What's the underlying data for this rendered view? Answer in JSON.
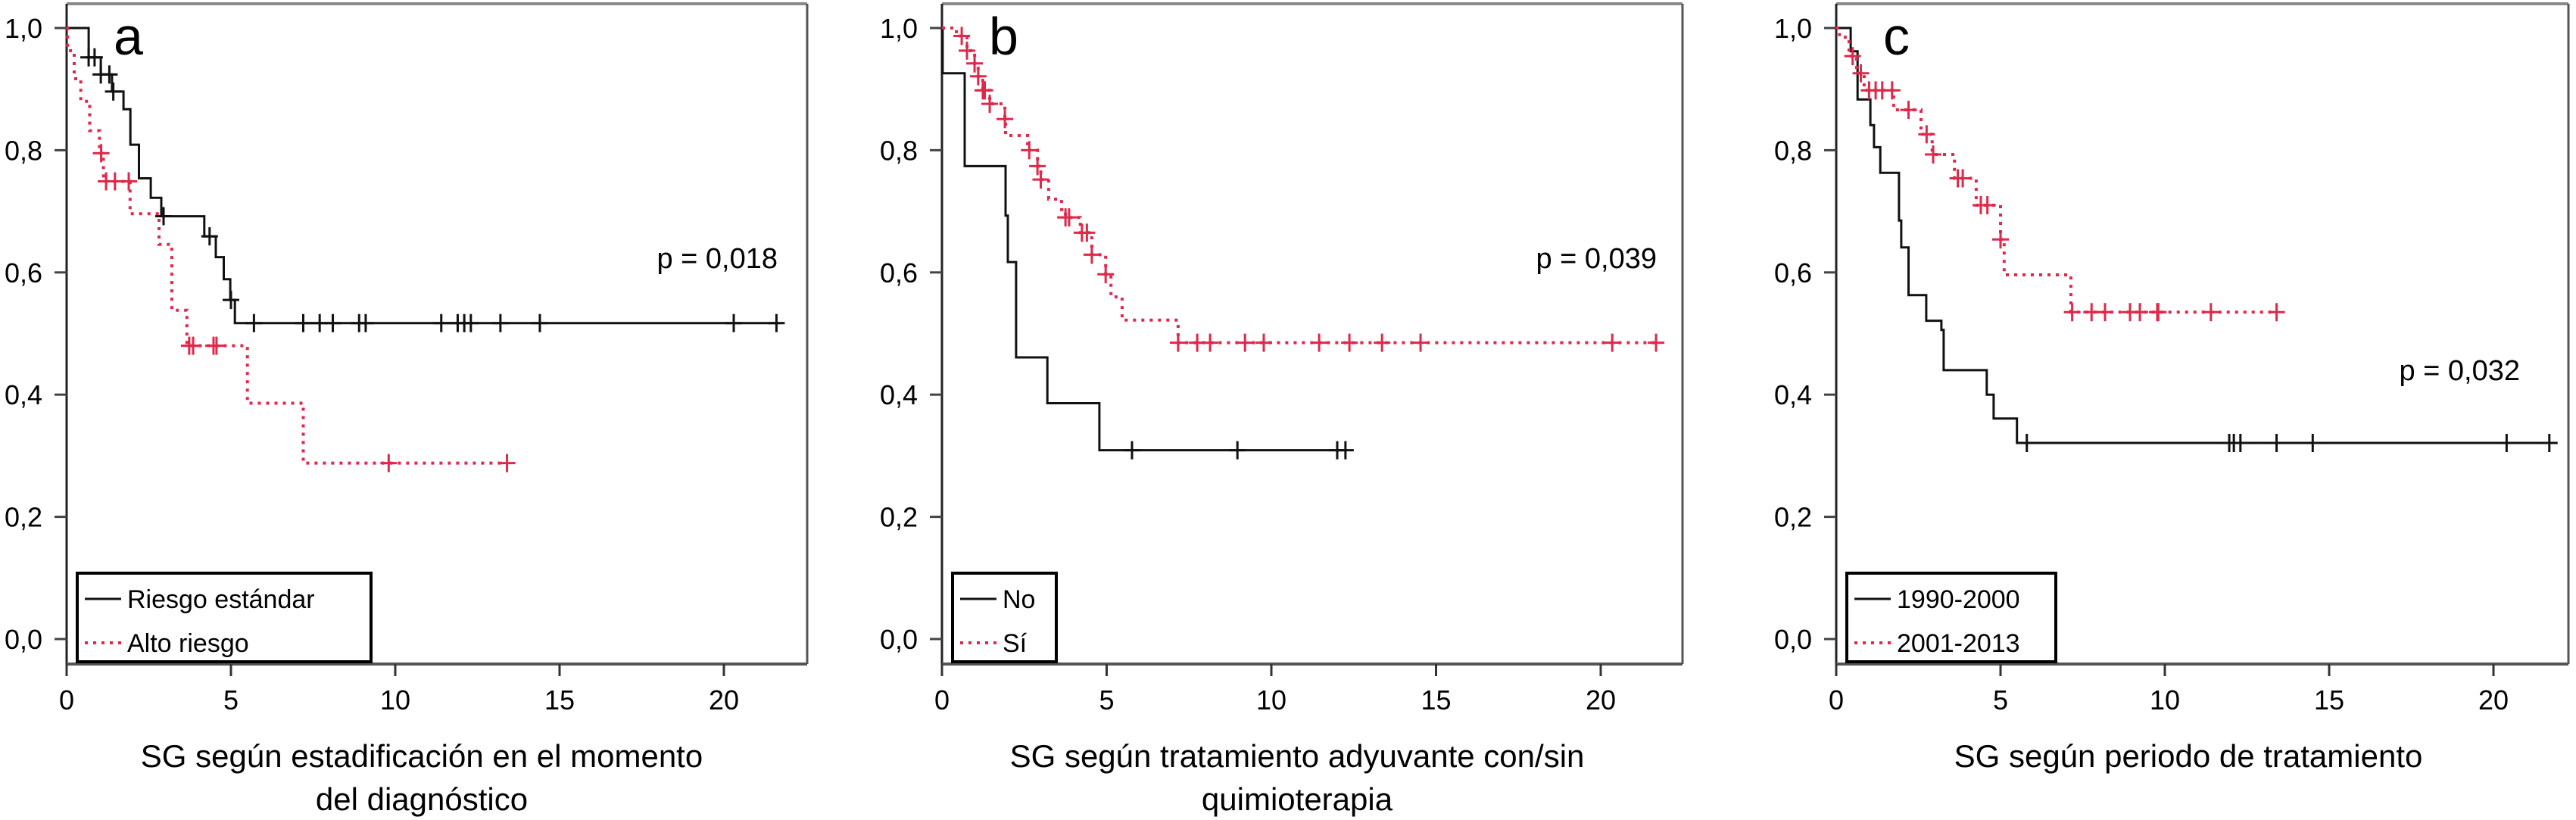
{
  "chart_data": [
    {
      "type": "line",
      "panel_letter": "a",
      "caption_lines": [
        "SG según estadificación en el momento",
        "del diagnóstico"
      ],
      "p_value": "p = 0,018",
      "xlabel": "",
      "ylabel": "",
      "xlim": [
        0,
        22.5
      ],
      "ylim": [
        0,
        1
      ],
      "xticks": [
        0,
        5,
        10,
        15,
        20
      ],
      "xtick_labels": [
        "0",
        "5",
        "10",
        "15",
        "20"
      ],
      "yticks": [
        0,
        0.2,
        0.4,
        0.6,
        0.8,
        1.0
      ],
      "ytick_labels": [
        "0,0",
        "0,2",
        "0,4",
        "0,6",
        "0,8",
        "1,0"
      ],
      "grid": false,
      "legend_placement": "bottom-left",
      "series": [
        {
          "name": "Riesgo estándar",
          "color": "#111111",
          "style": "solid",
          "end": 21.7,
          "steps": [
            [
              0.67,
              0.952
            ],
            [
              1.04,
              0.924
            ],
            [
              1.38,
              0.896
            ],
            [
              1.73,
              0.867
            ],
            [
              1.94,
              0.809
            ],
            [
              2.2,
              0.754
            ],
            [
              2.56,
              0.722
            ],
            [
              2.88,
              0.692
            ],
            [
              4.19,
              0.659
            ],
            [
              4.54,
              0.625
            ],
            [
              4.78,
              0.589
            ],
            [
              4.98,
              0.555
            ],
            [
              5.12,
              0.517
            ]
          ],
          "censored": [
            0.67,
            0.85,
            1.04,
            1.3,
            1.42,
            2.95,
            4.35,
            5.0,
            5.7,
            7.2,
            7.7,
            8.1,
            8.9,
            9.1,
            11.4,
            11.9,
            12.1,
            12.3,
            13.2,
            14.4,
            20.3,
            21.6
          ]
        },
        {
          "name": "Alto riesgo",
          "color": "#e0284a",
          "style": "dotted",
          "end": 13.4,
          "steps": [
            [
              0.03,
              0.963
            ],
            [
              0.23,
              0.917
            ],
            [
              0.43,
              0.88
            ],
            [
              0.7,
              0.832
            ],
            [
              1.0,
              0.795
            ],
            [
              1.12,
              0.749
            ],
            [
              1.93,
              0.696
            ],
            [
              2.81,
              0.646
            ],
            [
              3.2,
              0.538
            ],
            [
              3.66,
              0.48
            ],
            [
              5.5,
              0.386
            ],
            [
              7.2,
              0.288
            ]
          ],
          "censored": [
            1.05,
            1.2,
            1.47,
            1.89,
            3.73,
            3.85,
            4.47,
            4.56,
            9.8,
            13.4
          ]
        }
      ]
    },
    {
      "type": "line",
      "panel_letter": "b",
      "caption_lines": [
        "SG según tratamiento adyuvante con/sin",
        "quimioterapia"
      ],
      "p_value": "p = 0,039",
      "xlabel": "",
      "ylabel": "",
      "xlim": [
        0,
        22.5
      ],
      "ylim": [
        0,
        1
      ],
      "xticks": [
        0,
        5,
        10,
        15,
        20
      ],
      "xtick_labels": [
        "0",
        "5",
        "10",
        "15",
        "20"
      ],
      "yticks": [
        0,
        0.2,
        0.4,
        0.6,
        0.8,
        1.0
      ],
      "ytick_labels": [
        "0,0",
        "0,2",
        "0,4",
        "0,6",
        "0,8",
        "1,0"
      ],
      "grid": false,
      "legend_placement": "bottom-left",
      "series": [
        {
          "name": "No",
          "color": "#111111",
          "style": "solid",
          "end": 12.3,
          "steps": [
            [
              0.02,
              0.926
            ],
            [
              0.69,
              0.774
            ],
            [
              1.93,
              0.693
            ],
            [
              2.0,
              0.617
            ],
            [
              2.25,
              0.461
            ],
            [
              3.2,
              0.386
            ],
            [
              4.78,
              0.309
            ]
          ],
          "censored": [
            5.77,
            8.97,
            12.0,
            12.25
          ]
        },
        {
          "name": "Sí",
          "color": "#e0284a",
          "style": "dotted",
          "end": 21.7,
          "steps": [
            [
              0.44,
              0.987
            ],
            [
              0.76,
              0.963
            ],
            [
              0.99,
              0.942
            ],
            [
              1.1,
              0.921
            ],
            [
              1.24,
              0.898
            ],
            [
              1.45,
              0.876
            ],
            [
              1.91,
              0.851
            ],
            [
              1.93,
              0.824
            ],
            [
              2.6,
              0.8
            ],
            [
              2.9,
              0.774
            ],
            [
              3.0,
              0.752
            ],
            [
              3.24,
              0.72
            ],
            [
              3.63,
              0.703
            ],
            [
              3.75,
              0.69
            ],
            [
              4.2,
              0.665
            ],
            [
              4.55,
              0.629
            ],
            [
              4.97,
              0.597
            ],
            [
              5.13,
              0.56
            ],
            [
              5.47,
              0.522
            ],
            [
              7.17,
              0.485
            ]
          ],
          "censored": [
            0.6,
            0.76,
            0.99,
            1.1,
            1.24,
            1.3,
            1.45,
            1.91,
            2.65,
            2.9,
            3.0,
            3.75,
            3.86,
            4.25,
            4.4,
            4.55,
            4.97,
            7.17,
            7.75,
            8.14,
            9.2,
            9.77,
            11.45,
            12.37,
            13.36,
            14.53,
            20.35,
            21.68
          ]
        }
      ]
    },
    {
      "type": "line",
      "panel_letter": "c",
      "caption_lines": [
        "SG según periodo de tratamiento"
      ],
      "p_value": "p = 0,032",
      "xlabel": "",
      "ylabel": "",
      "xlim": [
        0,
        22.5
      ],
      "ylim": [
        0,
        1
      ],
      "xticks": [
        0,
        5,
        10,
        15,
        20
      ],
      "xtick_labels": [
        "0",
        "5",
        "10",
        "15",
        "20"
      ],
      "yticks": [
        0,
        0.2,
        0.4,
        0.6,
        0.8,
        1.0
      ],
      "ytick_labels": [
        "0,0",
        "0,2",
        "0,4",
        "0,6",
        "0,8",
        "1,0"
      ],
      "grid": false,
      "legend_placement": "bottom-left",
      "series": [
        {
          "name": "1990-2000",
          "color": "#111111",
          "style": "solid",
          "end": 21.8,
          "steps": [
            [
              0.44,
              0.962
            ],
            [
              0.65,
              0.883
            ],
            [
              1.04,
              0.841
            ],
            [
              1.15,
              0.805
            ],
            [
              1.34,
              0.763
            ],
            [
              1.91,
              0.685
            ],
            [
              1.98,
              0.641
            ],
            [
              2.2,
              0.563
            ],
            [
              2.74,
              0.521
            ],
            [
              3.2,
              0.506
            ],
            [
              3.27,
              0.44
            ],
            [
              4.58,
              0.4
            ],
            [
              4.79,
              0.361
            ],
            [
              5.5,
              0.321
            ]
          ],
          "censored": [
            5.8,
            11.96,
            12.1,
            12.3,
            13.4,
            14.5,
            20.4,
            21.7
          ]
        },
        {
          "name": "2001-2013",
          "color": "#e0284a",
          "style": "dotted",
          "end": 13.4,
          "steps": [
            [
              0.1,
              0.985
            ],
            [
              0.39,
              0.954
            ],
            [
              0.62,
              0.926
            ],
            [
              0.85,
              0.898
            ],
            [
              1.75,
              0.866
            ],
            [
              2.58,
              0.826
            ],
            [
              2.92,
              0.793
            ],
            [
              3.6,
              0.754
            ],
            [
              4.26,
              0.71
            ],
            [
              5.0,
              0.654
            ],
            [
              5.11,
              0.596
            ],
            [
              7.14,
              0.535
            ]
          ],
          "censored": [
            0.5,
            0.75,
            1.0,
            1.2,
            1.4,
            1.7,
            2.2,
            2.75,
            2.95,
            3.7,
            3.85,
            4.4,
            4.6,
            5.0,
            7.18,
            7.77,
            8.18,
            8.94,
            9.24,
            9.77,
            9.8,
            11.4,
            13.4
          ]
        }
      ]
    }
  ]
}
